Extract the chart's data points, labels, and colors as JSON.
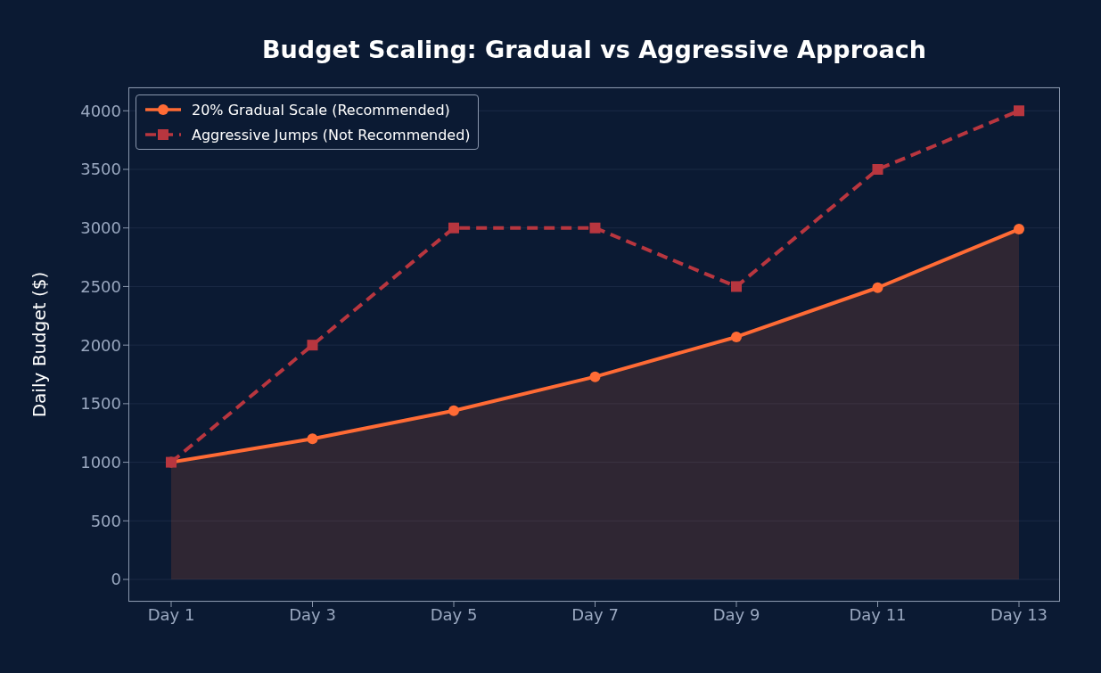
{
  "chart_data": {
    "type": "line",
    "title": "Budget Scaling: Gradual vs Aggressive Approach",
    "ylabel": "Daily Budget ($)",
    "categories": [
      "Day 1",
      "Day 3",
      "Day 5",
      "Day 7",
      "Day 9",
      "Day 11",
      "Day 13"
    ],
    "series": [
      {
        "name": "20% Gradual Scale (Recommended)",
        "type": "area",
        "color": "#ff6b35",
        "marker": "circle",
        "line_style": "solid",
        "values": [
          1000,
          1200,
          1440,
          1730,
          2070,
          2490,
          2990
        ]
      },
      {
        "name": "Aggressive Jumps (Not Recommended)",
        "type": "line",
        "color": "#b8363f",
        "marker": "square",
        "line_style": "dashed",
        "values": [
          1000,
          2000,
          3000,
          3000,
          2500,
          3500,
          4000
        ]
      }
    ],
    "ylim": [
      -190,
      4200
    ],
    "yticks": [
      0,
      500,
      1000,
      1500,
      2000,
      2500,
      3000,
      3500,
      4000
    ],
    "grid": "y",
    "legend": "top left"
  }
}
